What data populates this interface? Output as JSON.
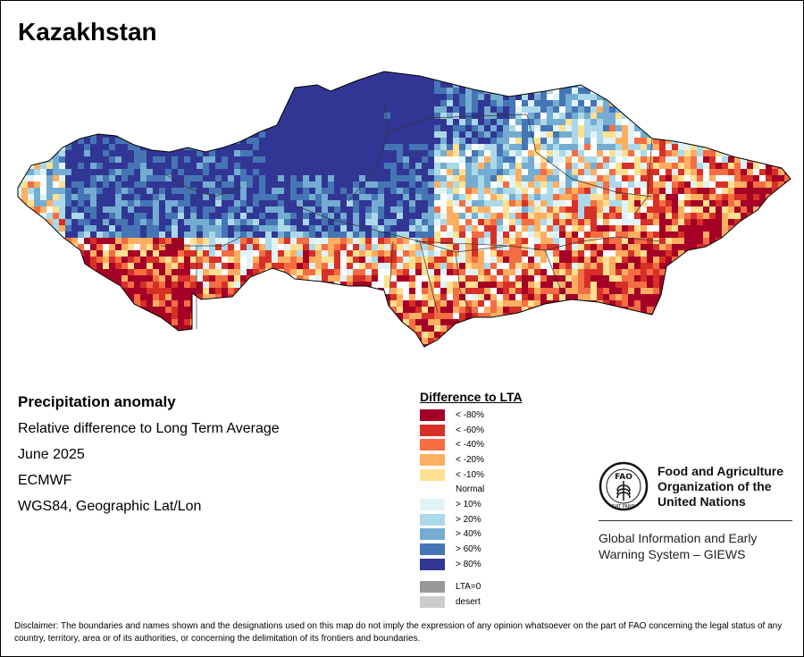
{
  "title": "Kazakhstan",
  "info": {
    "heading": "Precipitation anomaly",
    "subtitle": "Relative difference to Long Term Average",
    "date": "June 2025",
    "source": "ECMWF",
    "projection": "WGS84, Geographic Lat/Lon"
  },
  "legend": {
    "title": "Difference to LTA",
    "classes": [
      {
        "label": "< -80%",
        "color": "#a50026"
      },
      {
        "label": "< -60%",
        "color": "#d73027"
      },
      {
        "label": "< -40%",
        "color": "#f46d43"
      },
      {
        "label": "< -20%",
        "color": "#fdae61"
      },
      {
        "label": "< -10%",
        "color": "#fee090"
      },
      {
        "label": "Normal",
        "color": "#ffffff"
      },
      {
        "label": "> 10%",
        "color": "#e0f3f8"
      },
      {
        "label": "> 20%",
        "color": "#abd9e9"
      },
      {
        "label": "> 40%",
        "color": "#74add1"
      },
      {
        "label": "> 60%",
        "color": "#4575b4"
      },
      {
        "label": "> 80%",
        "color": "#313695"
      }
    ],
    "extra": [
      {
        "label": "LTA=0",
        "color": "#999999"
      },
      {
        "label": "desert",
        "color": "#cccccc"
      }
    ]
  },
  "fao": {
    "org_line1": "Food and Agriculture",
    "org_line2": "Organization of the",
    "org_line3": "United Nations",
    "giews_line1": "Global Information and Early",
    "giews_line2": "Warning System – GIEWS",
    "logo_text": "FAO",
    "logo_motto": "FIAT PANIS"
  },
  "disclaimer": "Disclaimer: The boundaries and names shown and the designations used on this map do not imply the expression of any opinion whatsoever on the part of FAO concerning the legal status of any country, territory, area or of its authorities, or concerning the delimitation of its frontiers and boundaries."
}
